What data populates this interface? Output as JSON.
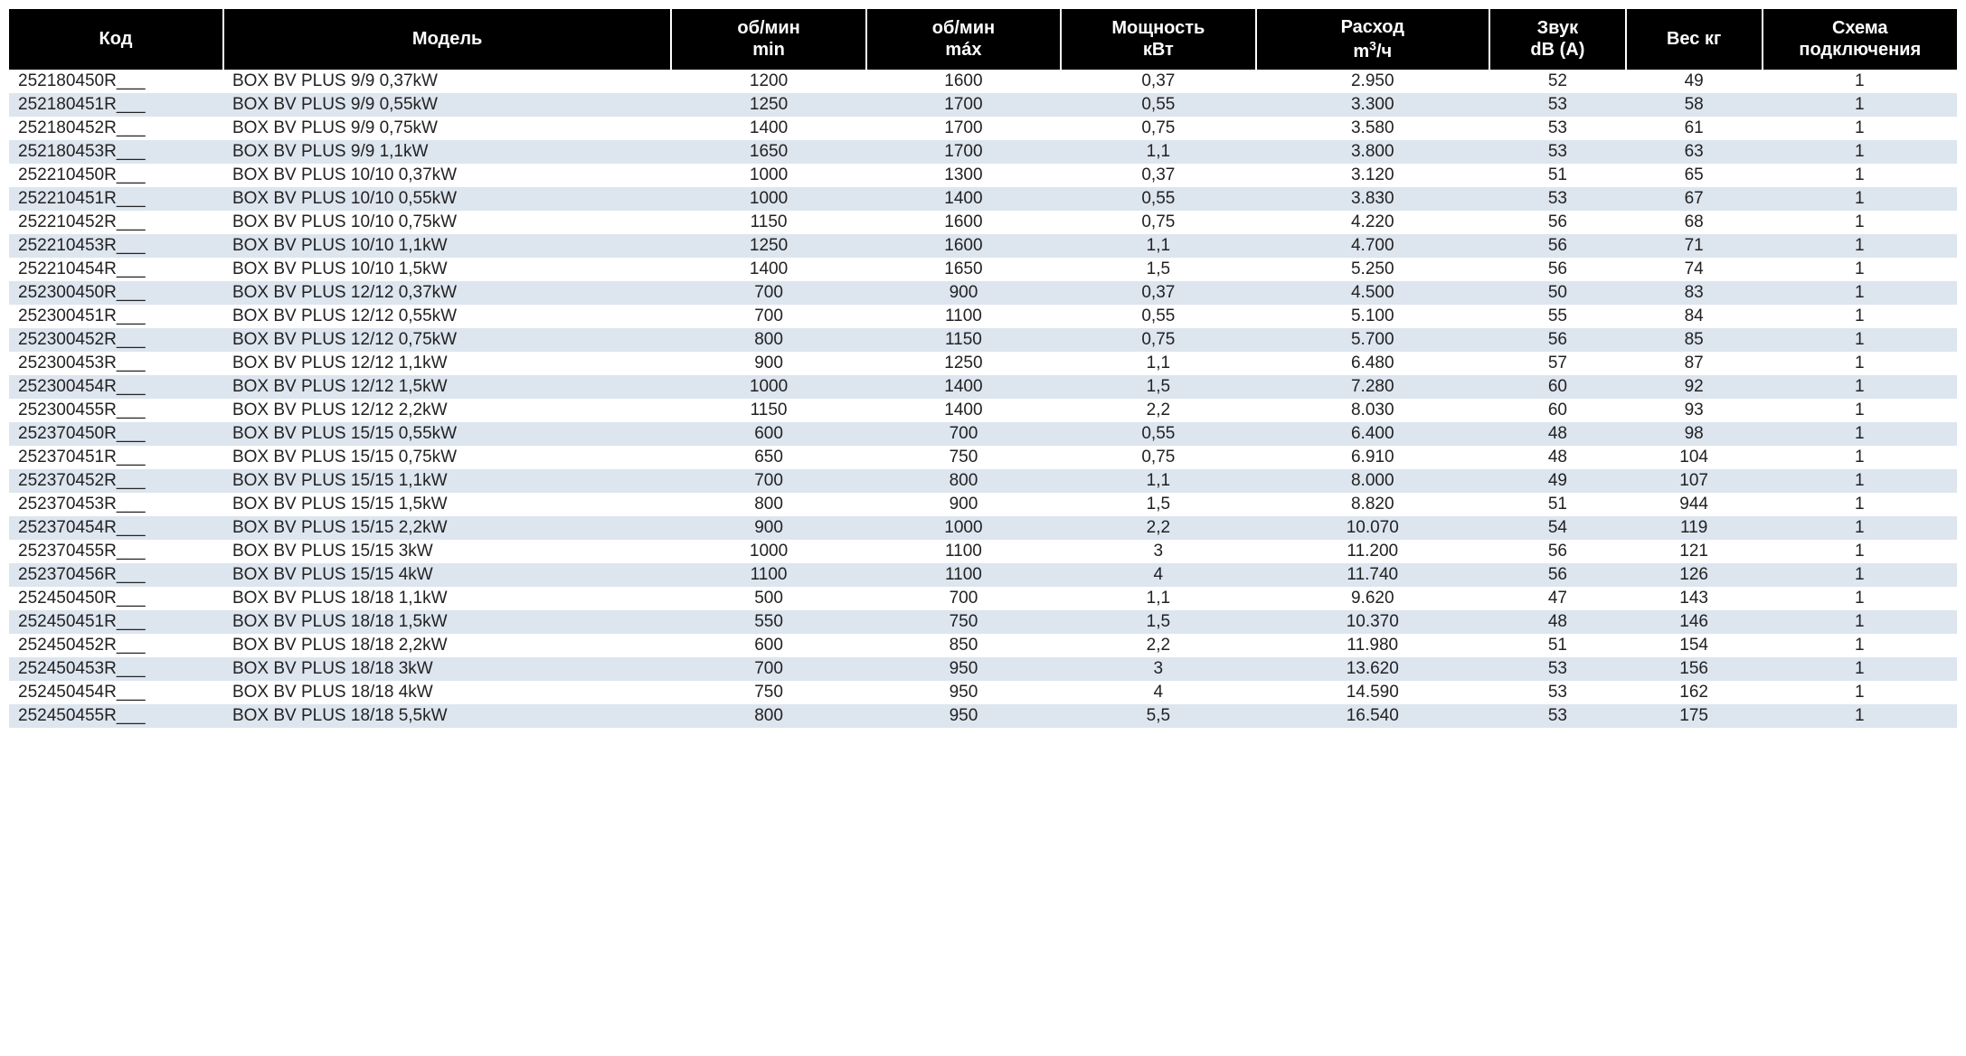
{
  "table": {
    "header_bg": "#000000",
    "header_fg": "#ffffff",
    "row_even_bg": "#ffffff",
    "row_odd_bg": "#dde5ef",
    "text_color": "#222222",
    "header_fontsize": 20,
    "body_fontsize": 19,
    "columns": [
      {
        "key": "code",
        "label_line1": "Код",
        "label_line2": "",
        "width_pct": 11,
        "align": "left"
      },
      {
        "key": "model",
        "label_line1": "Модель",
        "label_line2": "",
        "width_pct": 23,
        "align": "left"
      },
      {
        "key": "rpmmin",
        "label_line1": "об/мин",
        "label_line2": "min",
        "width_pct": 10,
        "align": "center"
      },
      {
        "key": "rpmmax",
        "label_line1": "об/мин",
        "label_line2": "máx",
        "width_pct": 10,
        "align": "center"
      },
      {
        "key": "power",
        "label_line1": "Мощность",
        "label_line2": "кВт",
        "width_pct": 10,
        "align": "center"
      },
      {
        "key": "flow",
        "label_line1": "Расход",
        "label_line2": "m³/ч",
        "width_pct": 12,
        "align": "center"
      },
      {
        "key": "sound",
        "label_line1": "Звук",
        "label_line2": "dB (A)",
        "width_pct": 7,
        "align": "center"
      },
      {
        "key": "weight",
        "label_line1": "Вес кг",
        "label_line2": "",
        "width_pct": 7,
        "align": "center"
      },
      {
        "key": "scheme",
        "label_line1": "Схема",
        "label_line2": "подключения",
        "width_pct": 10,
        "align": "center"
      }
    ],
    "rows": [
      [
        "252180450R___",
        "BOX BV PLUS 9/9 0,37kW",
        "1200",
        "1600",
        "0,37",
        "2.950",
        "52",
        "49",
        "1"
      ],
      [
        "252180451R___",
        "BOX BV PLUS 9/9 0,55kW",
        "1250",
        "1700",
        "0,55",
        "3.300",
        "53",
        "58",
        "1"
      ],
      [
        "252180452R___",
        "BOX BV PLUS 9/9 0,75kW",
        "1400",
        "1700",
        "0,75",
        "3.580",
        "53",
        "61",
        "1"
      ],
      [
        "252180453R___",
        "BOX BV PLUS 9/9 1,1kW",
        "1650",
        "1700",
        "1,1",
        "3.800",
        "53",
        "63",
        "1"
      ],
      [
        "252210450R___",
        "BOX BV PLUS 10/10 0,37kW",
        "1000",
        "1300",
        "0,37",
        "3.120",
        "51",
        "65",
        "1"
      ],
      [
        "252210451R___",
        "BOX BV PLUS 10/10 0,55kW",
        "1000",
        "1400",
        "0,55",
        "3.830",
        "53",
        "67",
        "1"
      ],
      [
        "252210452R___",
        "BOX BV PLUS 10/10 0,75kW",
        "1150",
        "1600",
        "0,75",
        "4.220",
        "56",
        "68",
        "1"
      ],
      [
        "252210453R___",
        "BOX BV PLUS 10/10 1,1kW",
        "1250",
        "1600",
        "1,1",
        "4.700",
        "56",
        "71",
        "1"
      ],
      [
        "252210454R___",
        "BOX BV PLUS 10/10 1,5kW",
        "1400",
        "1650",
        "1,5",
        "5.250",
        "56",
        "74",
        "1"
      ],
      [
        "252300450R___",
        "BOX BV PLUS 12/12 0,37kW",
        "700",
        "900",
        "0,37",
        "4.500",
        "50",
        "83",
        "1"
      ],
      [
        "252300451R___",
        "BOX BV PLUS 12/12 0,55kW",
        "700",
        "1100",
        "0,55",
        "5.100",
        "55",
        "84",
        "1"
      ],
      [
        "252300452R___",
        "BOX BV PLUS 12/12 0,75kW",
        "800",
        "1150",
        "0,75",
        "5.700",
        "56",
        "85",
        "1"
      ],
      [
        "252300453R___",
        "BOX BV PLUS 12/12 1,1kW",
        "900",
        "1250",
        "1,1",
        "6.480",
        "57",
        "87",
        "1"
      ],
      [
        "252300454R___",
        "BOX BV PLUS 12/12 1,5kW",
        "1000",
        "1400",
        "1,5",
        "7.280",
        "60",
        "92",
        "1"
      ],
      [
        "252300455R___",
        "BOX BV PLUS 12/12 2,2kW",
        "1150",
        "1400",
        "2,2",
        "8.030",
        "60",
        "93",
        "1"
      ],
      [
        "252370450R___",
        "BOX BV PLUS 15/15 0,55kW",
        "600",
        "700",
        "0,55",
        "6.400",
        "48",
        "98",
        "1"
      ],
      [
        "252370451R___",
        "BOX BV PLUS 15/15 0,75kW",
        "650",
        "750",
        "0,75",
        "6.910",
        "48",
        "104",
        "1"
      ],
      [
        "252370452R___",
        "BOX BV PLUS 15/15 1,1kW",
        "700",
        "800",
        "1,1",
        "8.000",
        "49",
        "107",
        "1"
      ],
      [
        "252370453R___",
        "BOX BV PLUS 15/15 1,5kW",
        "800",
        "900",
        "1,5",
        "8.820",
        "51",
        "944",
        "1"
      ],
      [
        "252370454R___",
        "BOX BV PLUS 15/15 2,2kW",
        "900",
        "1000",
        "2,2",
        "10.070",
        "54",
        "119",
        "1"
      ],
      [
        "252370455R___",
        "BOX BV PLUS 15/15 3kW",
        "1000",
        "1100",
        "3",
        "11.200",
        "56",
        "121",
        "1"
      ],
      [
        "252370456R___",
        "BOX BV PLUS 15/15 4kW",
        "1100",
        "1100",
        "4",
        "11.740",
        "56",
        "126",
        "1"
      ],
      [
        "252450450R___",
        "BOX BV PLUS 18/18 1,1kW",
        "500",
        "700",
        "1,1",
        "9.620",
        "47",
        "143",
        "1"
      ],
      [
        "252450451R___",
        "BOX BV PLUS 18/18 1,5kW",
        "550",
        "750",
        "1,5",
        "10.370",
        "48",
        "146",
        "1"
      ],
      [
        "252450452R___",
        "BOX BV PLUS 18/18 2,2kW",
        "600",
        "850",
        "2,2",
        "11.980",
        "51",
        "154",
        "1"
      ],
      [
        "252450453R___",
        "BOX BV PLUS 18/18 3kW",
        "700",
        "950",
        "3",
        "13.620",
        "53",
        "156",
        "1"
      ],
      [
        "252450454R___",
        "BOX BV PLUS 18/18 4kW",
        "750",
        "950",
        "4",
        "14.590",
        "53",
        "162",
        "1"
      ],
      [
        "252450455R___",
        "BOX BV PLUS 18/18 5,5kW",
        "800",
        "950",
        "5,5",
        "16.540",
        "53",
        "175",
        "1"
      ]
    ]
  }
}
